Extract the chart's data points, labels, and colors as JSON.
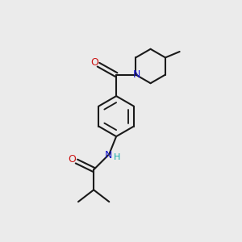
{
  "background_color": "#ebebeb",
  "bond_color": "#1a1a1a",
  "N_color": "#1414cc",
  "O_color": "#cc1414",
  "H_color": "#14aaaa",
  "bond_width": 1.5,
  "fig_width": 3.0,
  "fig_height": 3.0,
  "dpi": 100,
  "xlim": [
    0,
    10
  ],
  "ylim": [
    0,
    10
  ]
}
